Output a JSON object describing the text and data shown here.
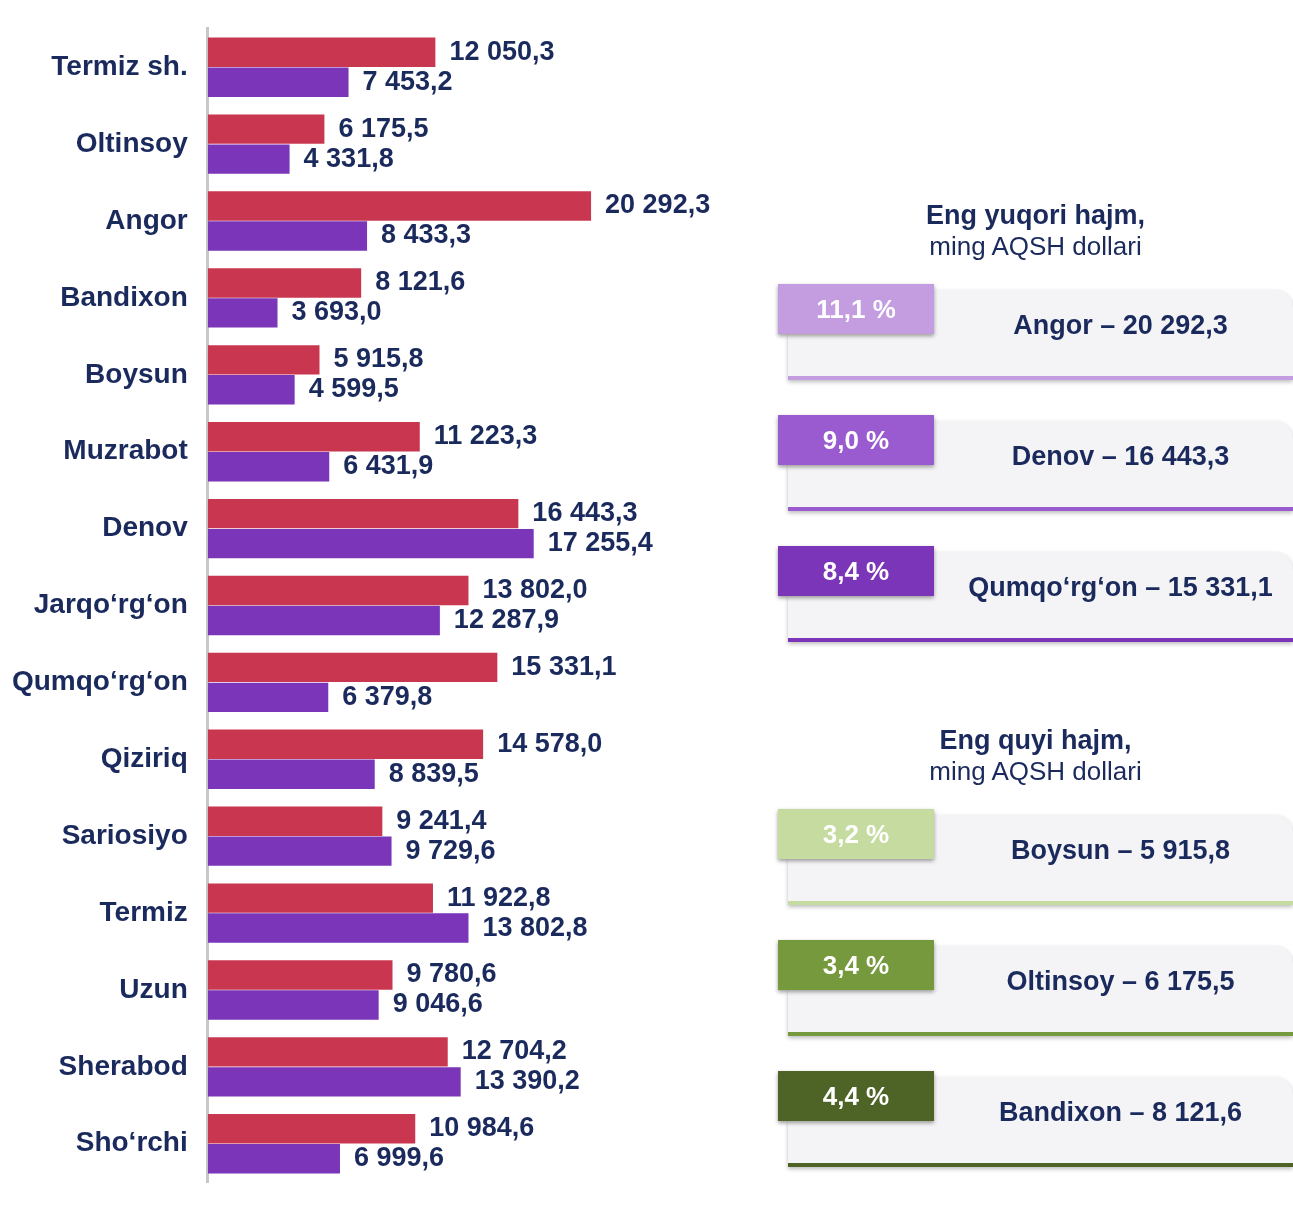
{
  "chart_data": [
    {
      "type": "bar",
      "orientation": "horizontal",
      "categories": [
        "Termiz sh.",
        "Oltinsoy",
        "Angor",
        "Bandixon",
        "Boysun",
        "Muzrabot",
        "Denov",
        "Jarqo‘rg‘on",
        "Qumqo‘rg‘on",
        "Qiziriq",
        "Sariosiyo",
        "Termiz",
        "Uzun",
        "Sherabod",
        "Sho‘rchi"
      ],
      "series": [
        {
          "color": "#c8374f",
          "values": [
            12050.3,
            6175.5,
            20292.3,
            8121.6,
            5915.8,
            11223.3,
            16443.3,
            13802.0,
            15331.1,
            14578.0,
            9241.4,
            11922.8,
            9780.6,
            12704.2,
            10984.6
          ],
          "value_labels": [
            "12 050,3",
            "6 175,5",
            "20 292,3",
            "8 121,6",
            "5 915,8",
            "11 223,3",
            "16 443,3",
            "13 802,0",
            "15 331,1",
            "14 578,0",
            "9 241,4",
            "11 922,8",
            "9 780,6",
            "12 704,2",
            "10 984,6"
          ]
        },
        {
          "color": "#7a35b8",
          "values": [
            7453.2,
            4331.8,
            8433.3,
            3693.0,
            4599.5,
            6431.9,
            17255.4,
            12287.9,
            6379.8,
            8839.5,
            9729.6,
            13802.8,
            9046.6,
            13390.2,
            6999.6
          ],
          "value_labels": [
            "7 453,2",
            "4 331,8",
            "8 433,3",
            "3 693,0",
            "4 599,5",
            "6 431,9",
            "17 255,4",
            "12 287,9",
            "6 379,8",
            "8 839,5",
            "9 729,6",
            "13 802,8",
            "9 046,6",
            "13 390,2",
            "6 999,6"
          ]
        }
      ],
      "grid": false,
      "legend": false
    },
    {
      "type": "other",
      "title": "Eng yuqori hajm,",
      "subtitle": "ming AQSH dollari",
      "annotations": [
        "11,1 %",
        "Angor – 20 292,3",
        "9,0 %",
        "Denov – 16 443,3",
        "8,4 %",
        "Qumqo‘rg‘on – 15 331,1"
      ],
      "colors": [
        "#c49ce0",
        "#9a5ad0",
        "#7a35b8"
      ]
    },
    {
      "type": "other",
      "title": "Eng quyi hajm,",
      "subtitle": "ming AQSH dollari",
      "annotations": [
        "3,2 %",
        "Boysun – 5 915,8",
        "3,4 %",
        "Oltinsoy – 6 175,5",
        "4,4 %",
        "Bandixon – 8 121,6"
      ],
      "colors": [
        "#c5dba0",
        "#77993d",
        "#4e6427"
      ]
    }
  ]
}
